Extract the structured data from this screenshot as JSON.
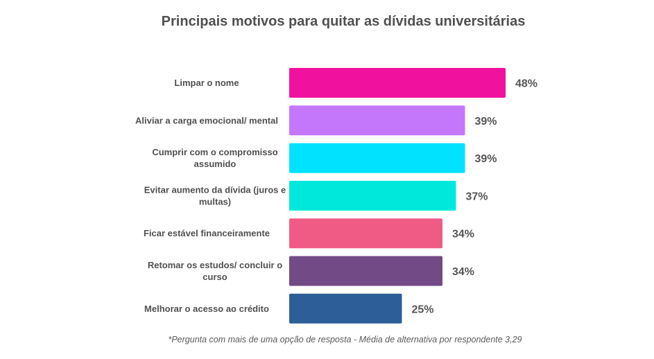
{
  "chart_data": {
    "type": "bar",
    "orientation": "horizontal",
    "title": "Principais motivos para quitar as dívidas universitárias",
    "categories": [
      [
        "Limpar o nome"
      ],
      [
        "Aliviar a carga emocional/ mental"
      ],
      [
        "Cumprir com o compromisso",
        "assumido"
      ],
      [
        "Evitar aumento da dívida (juros e",
        "multas)"
      ],
      [
        "Ficar estável financeiramente"
      ],
      [
        "Retomar os estudos/ concluir o",
        "curso"
      ],
      [
        "Melhorar o acesso ao crédito"
      ]
    ],
    "values": [
      48,
      39,
      39,
      37,
      34,
      34,
      25
    ],
    "data_labels": [
      "48%",
      "39%",
      "39%",
      "37%",
      "34%",
      "34%",
      "25%"
    ],
    "colors": [
      "#f0119e",
      "#c477fb",
      "#00e2ff",
      "#00e8dc",
      "#ef5b84",
      "#714a86",
      "#2d5e98"
    ],
    "xlim": [
      0,
      48
    ],
    "grid": false,
    "legend": "none",
    "footnote": "*Pergunta com mais de uma opção de resposta - Média de alternativa por respondente 3,29"
  }
}
